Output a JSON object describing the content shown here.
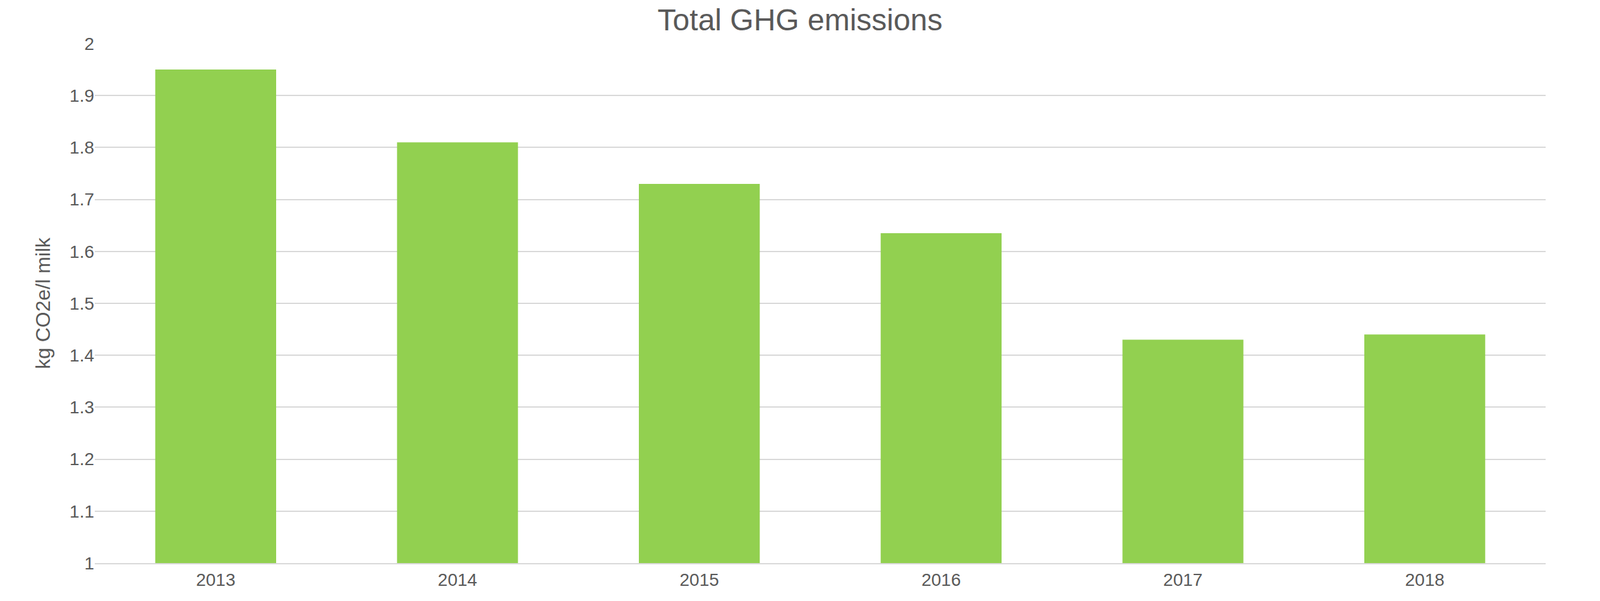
{
  "chart_data": {
    "type": "bar",
    "title": "Total GHG emissions",
    "y_label": "kg CO2e/l milk",
    "categories": [
      "2013",
      "2014",
      "2015",
      "2016",
      "2017",
      "2018"
    ],
    "values": [
      1.95,
      1.81,
      1.73,
      1.635,
      1.43,
      1.44
    ],
    "color": "#92d050",
    "ylim": [
      1,
      2
    ],
    "yticks": [
      1,
      1.1,
      1.2,
      1.3,
      1.4,
      1.5,
      1.6,
      1.7,
      1.8,
      1.9,
      2
    ],
    "grid": true
  }
}
